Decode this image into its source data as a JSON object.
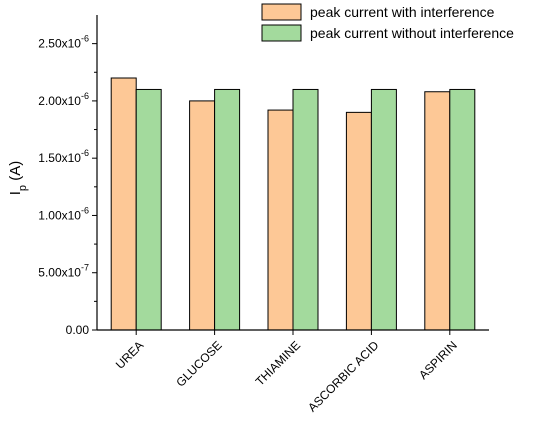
{
  "chart_data": {
    "type": "bar",
    "categories": [
      "UREA",
      "GLUCOSE",
      "THIAMINE",
      "ASCORBIC ACID",
      "ASPIRIN"
    ],
    "series": [
      {
        "name": "peak current with interference",
        "color": "#FDC896",
        "values": [
          2.2e-06,
          2e-06,
          1.92e-06,
          1.9e-06,
          2.08e-06
        ]
      },
      {
        "name": "peak current without interference",
        "color": "#A3DA9D",
        "values": [
          2.1e-06,
          2.1e-06,
          2.1e-06,
          2.1e-06,
          2.1e-06
        ]
      }
    ],
    "ylabel_main": "I",
    "ylabel_sub": "p",
    "ylabel_unit": " (A)",
    "xlabel": "",
    "ylim": [
      0,
      2.75e-06
    ],
    "yticks": [
      {
        "value": 0,
        "mantissa": "0.00",
        "exp": ""
      },
      {
        "value": 5e-07,
        "mantissa": "5.00x10",
        "exp": "-7"
      },
      {
        "value": 1e-06,
        "mantissa": "1.00x10",
        "exp": "-6"
      },
      {
        "value": 1.5e-06,
        "mantissa": "1.50x10",
        "exp": "-6"
      },
      {
        "value": 2e-06,
        "mantissa": "2.00x10",
        "exp": "-6"
      },
      {
        "value": 2.5e-06,
        "mantissa": "2.50x10",
        "exp": "-6"
      }
    ],
    "legend_position": "top-right",
    "grid": false
  }
}
